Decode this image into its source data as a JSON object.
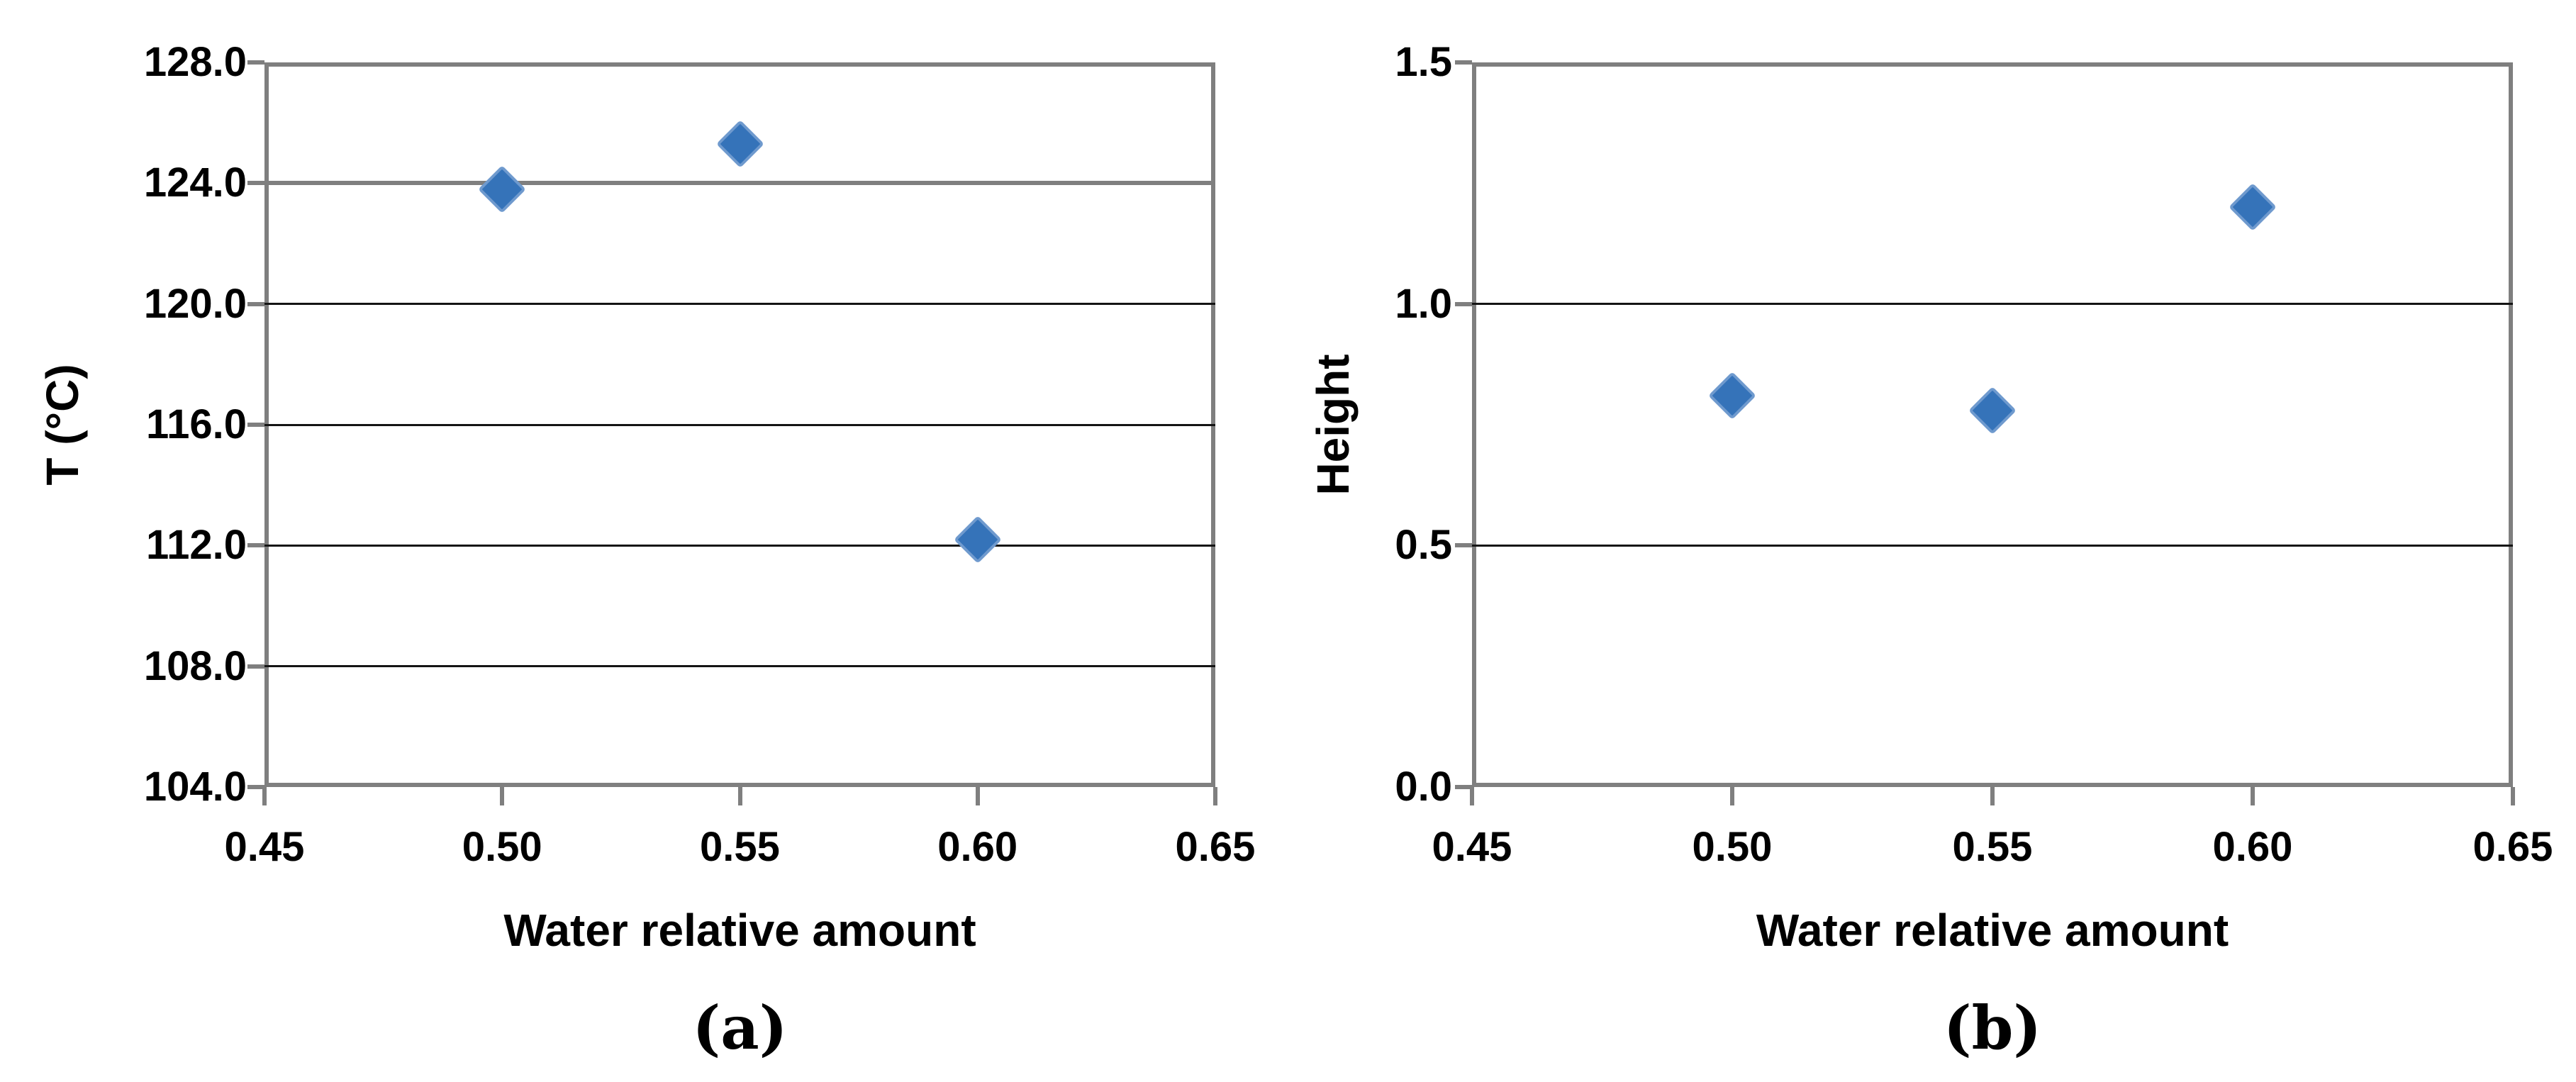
{
  "figure": {
    "background": "#ffffff",
    "axis_border_color": "#7f7f7f",
    "gridline_color": "#141414",
    "marker_color": "#3573b9",
    "marker_edge_color": "#6f9ace",
    "text_color": "#000000"
  },
  "chart_data": [
    {
      "id": "a",
      "type": "scatter",
      "caption": "(a)",
      "xlabel": "Water relative amount",
      "ylabel": "T (°C)",
      "x": [
        0.5,
        0.55,
        0.6
      ],
      "y": [
        123.8,
        125.3,
        112.2
      ],
      "xlim": [
        0.45,
        0.65
      ],
      "ylim": [
        104.0,
        128.0
      ],
      "xtick_labels": [
        "0.45",
        "0.50",
        "0.55",
        "0.60",
        "0.65"
      ],
      "xtick_values": [
        0.45,
        0.5,
        0.55,
        0.6,
        0.65
      ],
      "ytick_labels": [
        "128.0",
        "124.0",
        "120.0",
        "116.0",
        "112.0",
        "108.0",
        "104.0"
      ],
      "ytick_values": [
        128.0,
        124.0,
        120.0,
        116.0,
        112.0,
        108.0,
        104.0
      ],
      "gray_gridline_at": 124.0,
      "grid": true,
      "legend": "none",
      "marker": "diamond"
    },
    {
      "id": "b",
      "type": "scatter",
      "caption": "(b)",
      "xlabel": "Water relative amount",
      "ylabel": "Height",
      "x": [
        0.5,
        0.55,
        0.6
      ],
      "y": [
        0.81,
        0.78,
        1.2
      ],
      "xlim": [
        0.45,
        0.65
      ],
      "ylim": [
        0.0,
        1.5
      ],
      "xtick_labels": [
        "0.45",
        "0.50",
        "0.55",
        "0.60",
        "0.65"
      ],
      "xtick_values": [
        0.45,
        0.5,
        0.55,
        0.6,
        0.65
      ],
      "ytick_labels": [
        "1.5",
        "1.0",
        "0.5",
        "0.0"
      ],
      "ytick_values": [
        1.5,
        1.0,
        0.5,
        0.0
      ],
      "gray_gridline_at": null,
      "grid": true,
      "legend": "none",
      "marker": "diamond"
    }
  ]
}
